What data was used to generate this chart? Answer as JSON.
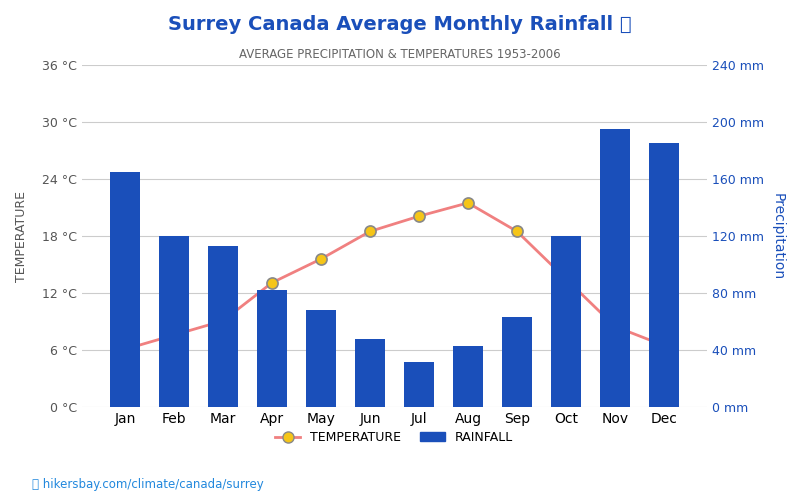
{
  "months": [
    "Jan",
    "Feb",
    "Mar",
    "Apr",
    "May",
    "Jun",
    "Jul",
    "Aug",
    "Sep",
    "Oct",
    "Nov",
    "Dec"
  ],
  "temperature": [
    6.1,
    7.6,
    9.1,
    13.1,
    15.6,
    18.5,
    20.1,
    21.5,
    18.5,
    13.5,
    8.5,
    6.5
  ],
  "rainfall": [
    165,
    120,
    113,
    82,
    68,
    48,
    32,
    43,
    63,
    120,
    195,
    185
  ],
  "title": "Surrey Canada Average Monthly Rainfall",
  "subtitle": "AVERAGE PRECIPITATION & TEMPERATURES 1953-2006",
  "temp_ylim": [
    0,
    36
  ],
  "precip_ylim": [
    0,
    240
  ],
  "temp_yticks": [
    0,
    6,
    12,
    18,
    24,
    30,
    36
  ],
  "precip_yticks": [
    0,
    40,
    80,
    120,
    160,
    200,
    240
  ],
  "bar_color": "#1a4fba",
  "line_color": "#f08080",
  "marker_face": "#f5c518",
  "marker_edge": "#888888",
  "title_color": "#1a4fba",
  "subtitle_color": "#666666",
  "left_label_color": "#555555",
  "right_label_color": "#1a4fba",
  "watermark": "hikersbay.com/climate/canada/surrey",
  "background_color": "#ffffff",
  "grid_color": "#cccccc"
}
